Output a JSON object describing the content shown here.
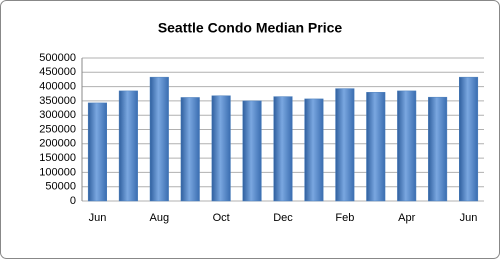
{
  "chart_data": {
    "type": "bar",
    "title": "Seattle Condo Median Price",
    "categories": [
      "Jun",
      null,
      "Aug",
      null,
      "Oct",
      null,
      "Dec",
      null,
      "Feb",
      null,
      "Apr",
      null,
      "Jun"
    ],
    "values": [
      343000,
      385000,
      433000,
      362000,
      368000,
      350000,
      365000,
      357000,
      393000,
      380000,
      385000,
      363000,
      433000
    ],
    "color": "#4a7ebb",
    "ylim": [
      0,
      500000
    ],
    "yticks": [
      0,
      50000,
      100000,
      150000,
      200000,
      250000,
      300000,
      350000,
      400000,
      450000,
      500000
    ],
    "grid": true
  }
}
